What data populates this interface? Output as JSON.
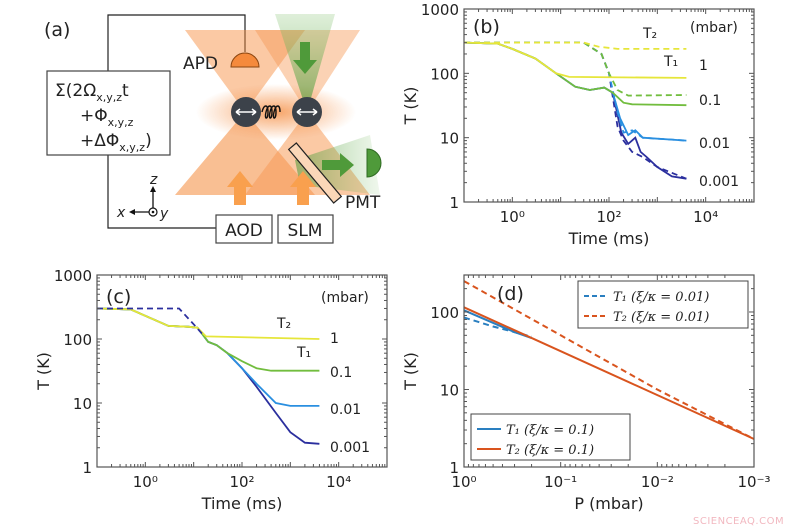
{
  "panel_a": {
    "label": "(a)",
    "formula": [
      {
        "pre": "Σ(2Ω",
        "sub": "x,y,z",
        "post": "t"
      },
      {
        "pre": "+Φ",
        "sub": "x,y,z",
        "post": ""
      },
      {
        "pre": "+ΔΦ",
        "sub": "x,y,z",
        "post": ")"
      }
    ],
    "apd": "APD",
    "pmt": "PMT",
    "aod": "AOD",
    "slm": "SLM",
    "axis_x": "x",
    "axis_y": "y",
    "axis_z": "z",
    "colors": {
      "trap": "#f58a3c",
      "probe": "#4f9a3a",
      "particle": "#3c424a"
    }
  },
  "watermark": "SCIENCEAQ.COM",
  "chart_data": [
    {
      "id": "b",
      "type": "line",
      "panel_label": "(b)",
      "xlabel": "Time (ms)",
      "ylabel": "T (K)",
      "xscale": "log",
      "yscale": "log",
      "xlim": [
        0.1,
        100000
      ],
      "ylim": [
        1,
        1000
      ],
      "xticks": [
        1,
        100,
        10000
      ],
      "xtick_labels": [
        "10⁰",
        "10²",
        "10⁴"
      ],
      "yticks": [
        1,
        10,
        100,
        1000
      ],
      "ytick_labels": [
        "1",
        "10",
        "100",
        "1000"
      ],
      "annotations": {
        "unit": "(mbar)",
        "t2": "T₂",
        "t1": "T₁",
        "p1": "1",
        "p2": "0.1",
        "p3": "0.01",
        "p4": "0.001"
      },
      "series": [
        {
          "pressure": "0.001",
          "kind": "T1",
          "style": "solid",
          "color": "#2b2f9e",
          "points": [
            [
              0.1,
              300
            ],
            [
              0.5,
              290
            ],
            [
              1,
              240
            ],
            [
              3,
              170
            ],
            [
              8,
              100
            ],
            [
              20,
              62
            ],
            [
              40,
              55
            ],
            [
              80,
              60
            ],
            [
              120,
              50
            ],
            [
              180,
              12
            ],
            [
              250,
              8
            ],
            [
              350,
              10
            ],
            [
              450,
              6
            ],
            [
              600,
              5
            ],
            [
              1000,
              3.5
            ],
            [
              2000,
              2.5
            ],
            [
              4000,
              2.3
            ]
          ]
        },
        {
          "pressure": "0.001",
          "kind": "T2",
          "style": "dashed",
          "color": "#2b2f9e",
          "points": [
            [
              0.1,
              300
            ],
            [
              30,
              300
            ],
            [
              70,
              200
            ],
            [
              100,
              100
            ],
            [
              150,
              15
            ],
            [
              200,
              9
            ],
            [
              300,
              6
            ],
            [
              500,
              5
            ],
            [
              1000,
              3.5
            ],
            [
              4000,
              2.3
            ]
          ]
        },
        {
          "pressure": "0.01",
          "kind": "T1",
          "style": "solid",
          "color": "#2a8fe0",
          "points": [
            [
              0.1,
              300
            ],
            [
              0.5,
              290
            ],
            [
              1,
              240
            ],
            [
              3,
              170
            ],
            [
              8,
              100
            ],
            [
              20,
              62
            ],
            [
              40,
              55
            ],
            [
              80,
              60
            ],
            [
              120,
              50
            ],
            [
              170,
              20
            ],
            [
              250,
              11
            ],
            [
              350,
              13
            ],
            [
              500,
              10
            ],
            [
              4000,
              9
            ]
          ]
        },
        {
          "pressure": "0.01",
          "kind": "T2",
          "style": "dashed",
          "color": "#2a8fe0",
          "points": [
            [
              0.1,
              300
            ],
            [
              30,
              300
            ],
            [
              70,
              200
            ],
            [
              100,
              100
            ],
            [
              150,
              25
            ],
            [
              200,
              12
            ],
            [
              300,
              13
            ],
            [
              500,
              10
            ],
            [
              4000,
              9
            ]
          ]
        },
        {
          "pressure": "0.1",
          "kind": "T1",
          "style": "solid",
          "color": "#72bd3e",
          "points": [
            [
              0.1,
              300
            ],
            [
              0.5,
              290
            ],
            [
              1,
              240
            ],
            [
              3,
              170
            ],
            [
              8,
              100
            ],
            [
              20,
              62
            ],
            [
              40,
              55
            ],
            [
              80,
              60
            ],
            [
              120,
              50
            ],
            [
              200,
              35
            ],
            [
              300,
              33
            ],
            [
              4000,
              32
            ]
          ]
        },
        {
          "pressure": "0.1",
          "kind": "T2",
          "style": "dashed",
          "color": "#72bd3e",
          "points": [
            [
              0.1,
              300
            ],
            [
              30,
              300
            ],
            [
              70,
              200
            ],
            [
              100,
              100
            ],
            [
              150,
              55
            ],
            [
              250,
              45
            ],
            [
              4000,
              46
            ]
          ]
        },
        {
          "pressure": "1",
          "kind": "T1",
          "style": "solid",
          "color": "#e6e63a",
          "points": [
            [
              0.1,
              300
            ],
            [
              0.5,
              290
            ],
            [
              1,
              240
            ],
            [
              3,
              170
            ],
            [
              8,
              100
            ],
            [
              15,
              88
            ],
            [
              4000,
              85
            ]
          ]
        },
        {
          "pressure": "1",
          "kind": "T2",
          "style": "dashed",
          "color": "#e6e63a",
          "points": [
            [
              0.1,
              300
            ],
            [
              30,
              300
            ],
            [
              60,
              260
            ],
            [
              150,
              240
            ],
            [
              4000,
              240
            ]
          ]
        }
      ]
    },
    {
      "id": "c",
      "type": "line",
      "panel_label": "(c)",
      "xlabel": "Time (ms)",
      "ylabel": "T (K)",
      "xscale": "log",
      "yscale": "log",
      "xlim": [
        0.1,
        100000
      ],
      "ylim": [
        1,
        1000
      ],
      "xticks": [
        1,
        100,
        10000
      ],
      "xtick_labels": [
        "10⁰",
        "10²",
        "10⁴"
      ],
      "yticks": [
        1,
        10,
        100,
        1000
      ],
      "ytick_labels": [
        "1",
        "10",
        "100",
        "1000"
      ],
      "annotations": {
        "unit": "(mbar)",
        "t2": "T₂",
        "t1": "T₁",
        "p1": "1",
        "p2": "0.1",
        "p3": "0.01",
        "p4": "0.001"
      },
      "series": [
        {
          "pressure": "0.001",
          "kind": "T1",
          "style": "solid",
          "color": "#2b2f9e",
          "points": [
            [
              0.1,
              300
            ],
            [
              0.5,
              290
            ],
            [
              1,
              230
            ],
            [
              3,
              160
            ],
            [
              8,
              155
            ],
            [
              12,
              150
            ],
            [
              20,
              90
            ],
            [
              30,
              80
            ],
            [
              50,
              60
            ],
            [
              100,
              35
            ],
            [
              200,
              18
            ],
            [
              500,
              7
            ],
            [
              1000,
              3.5
            ],
            [
              2000,
              2.4
            ],
            [
              4000,
              2.3
            ]
          ]
        },
        {
          "pressure": "0.01",
          "kind": "T1",
          "style": "solid",
          "color": "#2a8fe0",
          "points": [
            [
              0.1,
              300
            ],
            [
              0.5,
              290
            ],
            [
              1,
              230
            ],
            [
              3,
              160
            ],
            [
              8,
              155
            ],
            [
              12,
              150
            ],
            [
              20,
              90
            ],
            [
              30,
              80
            ],
            [
              50,
              60
            ],
            [
              100,
              35
            ],
            [
              200,
              20
            ],
            [
              500,
              10
            ],
            [
              1000,
              9
            ],
            [
              4000,
              9
            ]
          ]
        },
        {
          "pressure": "0.1",
          "kind": "T1",
          "style": "solid",
          "color": "#72bd3e",
          "points": [
            [
              0.1,
              300
            ],
            [
              0.5,
              290
            ],
            [
              1,
              230
            ],
            [
              3,
              160
            ],
            [
              8,
              155
            ],
            [
              12,
              150
            ],
            [
              20,
              90
            ],
            [
              30,
              80
            ],
            [
              50,
              60
            ],
            [
              100,
              45
            ],
            [
              200,
              35
            ],
            [
              400,
              32
            ],
            [
              4000,
              32
            ]
          ]
        },
        {
          "pressure": "1",
          "kind": "T1",
          "style": "solid",
          "color": "#e6e63a",
          "points": [
            [
              0.1,
              300
            ],
            [
              0.5,
              290
            ],
            [
              1,
              230
            ],
            [
              3,
              160
            ],
            [
              8,
              155
            ],
            [
              12,
              150
            ],
            [
              18,
              110
            ],
            [
              4000,
              100
            ]
          ]
        },
        {
          "pressure": "all",
          "kind": "T2",
          "style": "dashed",
          "color": "#2b2f9e",
          "points": [
            [
              0.1,
              300
            ],
            [
              5,
              300
            ],
            [
              10,
              170
            ],
            [
              15,
              120
            ]
          ]
        }
      ]
    },
    {
      "id": "d",
      "type": "line",
      "panel_label": "(d)",
      "xlabel": "P (mbar)",
      "ylabel": "T (K)",
      "xscale": "log",
      "yscale": "log",
      "x_reversed": true,
      "xlim": [
        1,
        0.001
      ],
      "ylim": [
        1,
        300
      ],
      "xticks": [
        1,
        0.1,
        0.01,
        0.001
      ],
      "xtick_labels": [
        "10⁰",
        "10⁻¹",
        "10⁻²",
        "10⁻³"
      ],
      "yticks": [
        1,
        10,
        100
      ],
      "ytick_labels": [
        "1",
        "10",
        "100"
      ],
      "legend_top": [
        "T₁ (ξ/κ = 0.01)",
        "T₂ (ξ/κ = 0.01)"
      ],
      "legend_bottom": [
        "T₁ (ξ/κ = 0.1)",
        "T₂ (ξ/κ = 0.1)"
      ],
      "series": [
        {
          "name": "T₁ (ξ/κ = 0.01)",
          "style": "dashed",
          "color": "#2a7fc0",
          "points": [
            [
              1,
              85
            ],
            [
              0.5,
              65
            ],
            [
              0.3,
              55
            ],
            [
              0.2,
              48
            ]
          ]
        },
        {
          "name": "T₂ (ξ/κ = 0.01)",
          "style": "dashed",
          "color": "#d9541e",
          "points": [
            [
              1,
              250
            ],
            [
              0.1,
              50
            ],
            [
              0.01,
              10
            ],
            [
              0.001,
              2.3
            ]
          ]
        },
        {
          "name": "T₁ (ξ/κ = 0.1)",
          "style": "solid",
          "color": "#2a7fc0",
          "points": [
            [
              1,
              105
            ],
            [
              0.3,
              55
            ],
            [
              0.2,
              46
            ]
          ]
        },
        {
          "name": "T₂ (ξ/κ = 0.1)",
          "style": "solid",
          "color": "#d9541e",
          "points": [
            [
              1,
              115
            ],
            [
              0.001,
              2.3
            ]
          ]
        }
      ]
    }
  ]
}
